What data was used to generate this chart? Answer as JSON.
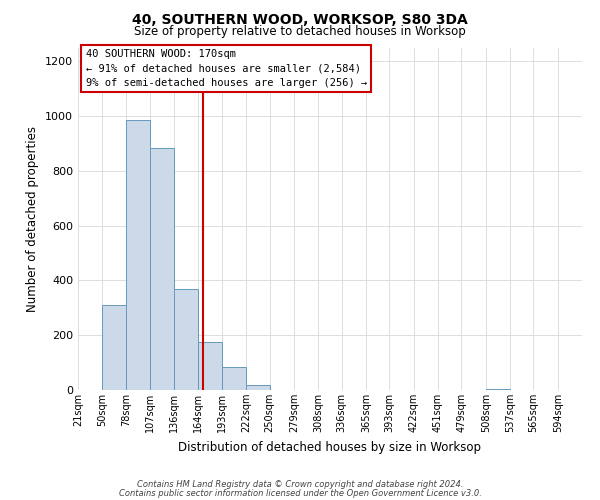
{
  "title": "40, SOUTHERN WOOD, WORKSOP, S80 3DA",
  "subtitle": "Size of property relative to detached houses in Worksop",
  "xlabel": "Distribution of detached houses by size in Worksop",
  "ylabel": "Number of detached properties",
  "bar_color": "#ccd9e8",
  "bar_edge_color": "#6699bb",
  "bin_labels": [
    "21sqm",
    "50sqm",
    "78sqm",
    "107sqm",
    "136sqm",
    "164sqm",
    "193sqm",
    "222sqm",
    "250sqm",
    "279sqm",
    "308sqm",
    "336sqm",
    "365sqm",
    "393sqm",
    "422sqm",
    "451sqm",
    "479sqm",
    "508sqm",
    "537sqm",
    "565sqm",
    "594sqm"
  ],
  "values": [
    0,
    310,
    985,
    885,
    370,
    175,
    85,
    20,
    0,
    0,
    0,
    0,
    0,
    0,
    0,
    0,
    0,
    5,
    0,
    0,
    0
  ],
  "ylim": [
    0,
    1250
  ],
  "yticks": [
    0,
    200,
    400,
    600,
    800,
    1000,
    1200
  ],
  "property_line_x": 170,
  "bin_edges_values": [
    21,
    50,
    78,
    107,
    136,
    164,
    193,
    222,
    250,
    279,
    308,
    336,
    365,
    393,
    422,
    451,
    479,
    508,
    537,
    565,
    594,
    623
  ],
  "annotation_title": "40 SOUTHERN WOOD: 170sqm",
  "annotation_line1": "← 91% of detached houses are smaller (2,584)",
  "annotation_line2": "9% of semi-detached houses are larger (256) →",
  "annotation_box_color": "#ffffff",
  "annotation_box_edge": "#cc0000",
  "vline_color": "#cc0000",
  "footnote1": "Contains HM Land Registry data © Crown copyright and database right 2024.",
  "footnote2": "Contains public sector information licensed under the Open Government Licence v3.0.",
  "background_color": "#ffffff",
  "grid_color": "#dddddd"
}
